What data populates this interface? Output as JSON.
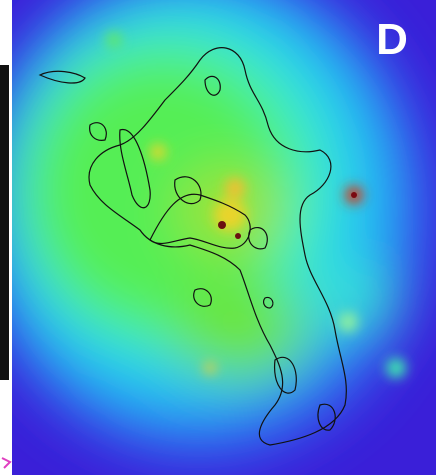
{
  "panel": {
    "label": "D"
  }
}
